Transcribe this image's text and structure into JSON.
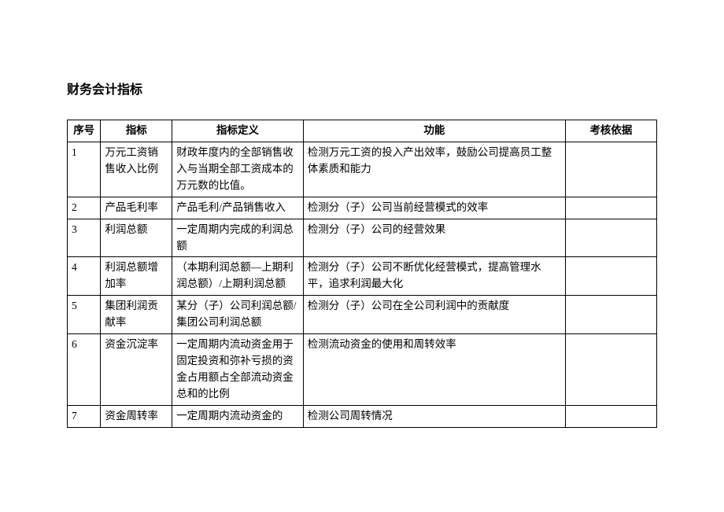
{
  "title": "财务会计指标",
  "columns": [
    "序号",
    "指标",
    "指标定义",
    "功能",
    "考核依据"
  ],
  "rows": [
    [
      "1",
      "万元工资销售收入比例",
      "财政年度内的全部销售收入与当期全部工资成本的万元数的比值。",
      "检测万元工资的投入产出效率，鼓励公司提高员工整体素质和能力",
      ""
    ],
    [
      "2",
      "产品毛利率",
      "产品毛利/产品销售收入",
      "检测分（子）公司当前经营模式的效率",
      ""
    ],
    [
      "3",
      "利润总额",
      "一定周期内完成的利润总额",
      "检测分（子）公司的经营效果",
      ""
    ],
    [
      "4",
      "利润总额增加率",
      "（本期利润总额—上期利润总额）/上期利润总额",
      "检测分（子）公司不断优化经营模式，提高管理水平，追求利润最大化",
      ""
    ],
    [
      "5",
      "集团利润贡献率",
      "某分（子）公司利润总额/集团公司利润总额",
      "检测分（子）公司在全公司利润中的贡献度",
      ""
    ],
    [
      "6",
      "资金沉淀率",
      "一定周期内流动资金用于固定投资和弥补亏损的资金占用额占全部流动资金总和的比例",
      "检测流动资金的使用和周转效率",
      ""
    ],
    [
      "7",
      "资金周转率",
      "一定周期内流动资金的",
      "检测公司周转情况",
      ""
    ]
  ],
  "column_classes": [
    "col-sn",
    "col-ind",
    "col-def",
    "col-func",
    "col-basis"
  ],
  "styling": {
    "background_color": "#ffffff",
    "border_color": "#000000",
    "text_color": "#000000",
    "title_fontsize": 16,
    "cell_fontsize": 13.5,
    "font_family": "SimSun"
  }
}
